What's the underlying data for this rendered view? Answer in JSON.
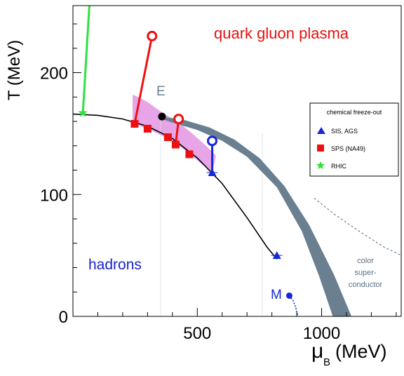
{
  "chart_data": {
    "type": "scatter",
    "title": "",
    "xlabel": "μ",
    "xlabel_sub": "B",
    "xlabel_unit": "(MeV)",
    "ylabel": "T (MeV)",
    "xlim": [
      0,
      1320
    ],
    "ylim": [
      0,
      255
    ],
    "x_ticks": [
      500,
      1000
    ],
    "y_ticks": [
      0,
      100,
      200
    ],
    "grid": false,
    "annotations": {
      "qgp": "quark gluon plasma",
      "hadrons": "hadrons",
      "critical_point": "E",
      "m_point": "M",
      "csc_line1": "color",
      "csc_line2": "super-",
      "csc_line3": "conductor"
    },
    "legend": {
      "title": "chemical freeze-out",
      "position": "right",
      "items": [
        {
          "label": "SIS, AGS",
          "marker": "triangle",
          "color": "#1428d8"
        },
        {
          "label": "SPS (NA49)",
          "marker": "square",
          "color": "#ee1010"
        },
        {
          "label": "RHIC",
          "marker": "star",
          "color": "#30e040"
        }
      ]
    },
    "freeze_out_curve": [
      [
        0,
        166
      ],
      [
        100,
        165
      ],
      [
        200,
        162
      ],
      [
        300,
        156
      ],
      [
        400,
        146
      ],
      [
        500,
        130
      ],
      [
        600,
        109
      ],
      [
        700,
        81
      ],
      [
        780,
        57
      ],
      [
        820,
        47
      ]
    ],
    "sis_ags_points": [
      {
        "x": 560,
        "y": 118
      },
      {
        "x": 820,
        "y": 50
      }
    ],
    "sps_points": [
      {
        "x": 248,
        "y": 158
      },
      {
        "x": 300,
        "y": 154
      },
      {
        "x": 382,
        "y": 147
      },
      {
        "x": 413,
        "y": 141
      },
      {
        "x": 468,
        "y": 133
      }
    ],
    "rhic_points": [
      {
        "x": 40,
        "y": 167
      }
    ],
    "critical_point": {
      "x": 358,
      "y": 164
    },
    "m_point": {
      "x": 870,
      "y": 17
    },
    "trajectories": [
      {
        "color": "#ee1010",
        "from": [
          248,
          158
        ],
        "to": [
          318,
          230
        ]
      },
      {
        "color": "#ee1010",
        "from": [
          413,
          141
        ],
        "to": [
          425,
          162
        ]
      },
      {
        "color": "#1428d8",
        "from": [
          560,
          118
        ],
        "to": [
          560,
          144
        ]
      },
      {
        "color": "#30e040",
        "from": [
          40,
          167
        ],
        "to": [
          68,
          262
        ]
      }
    ],
    "colors": {
      "band": "#6a7f90",
      "csc_text": "#557085",
      "lattice_region": "#e7a4e7",
      "freeze_curve": "#000000",
      "qgp_text": "#e81010",
      "hadron_text": "#1a22d0"
    }
  }
}
